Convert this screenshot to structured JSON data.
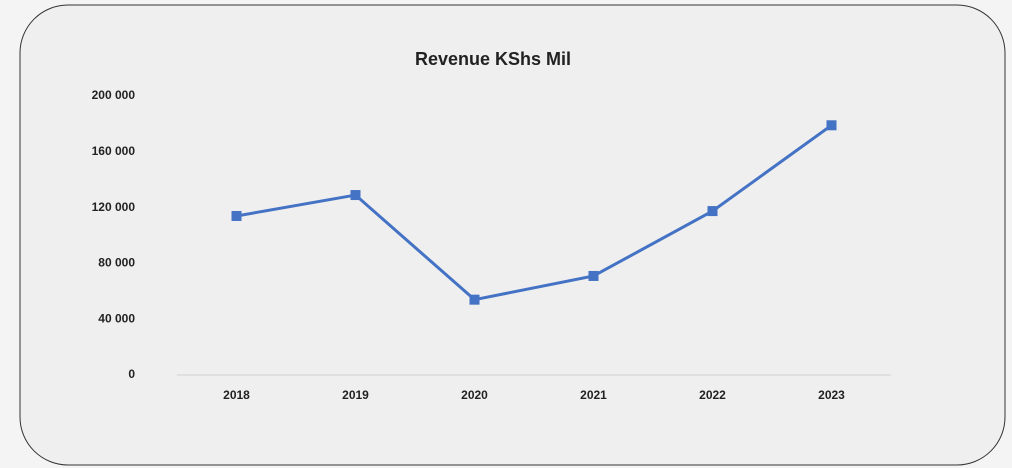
{
  "chart_data": {
    "type": "line",
    "title": "Revenue KShs Mil",
    "categories": [
      "2018",
      "2019",
      "2020",
      "2021",
      "2022",
      "2023"
    ],
    "series": [
      {
        "name": "Revenue",
        "color": "#4472c4",
        "values": [
          114000,
          129000,
          54000,
          71000,
          117500,
          179000
        ]
      }
    ],
    "ylim": [
      0,
      200000
    ],
    "yticks": [
      0,
      {
        "value": 40000,
        "label": "40 000"
      },
      {
        "value": 80000,
        "label": "80 000"
      },
      {
        "value": 120000,
        "label": "120 000"
      },
      {
        "value": 160000,
        "label": "160 000"
      },
      {
        "value": 200000,
        "label": "200 000"
      }
    ],
    "grid": false
  }
}
